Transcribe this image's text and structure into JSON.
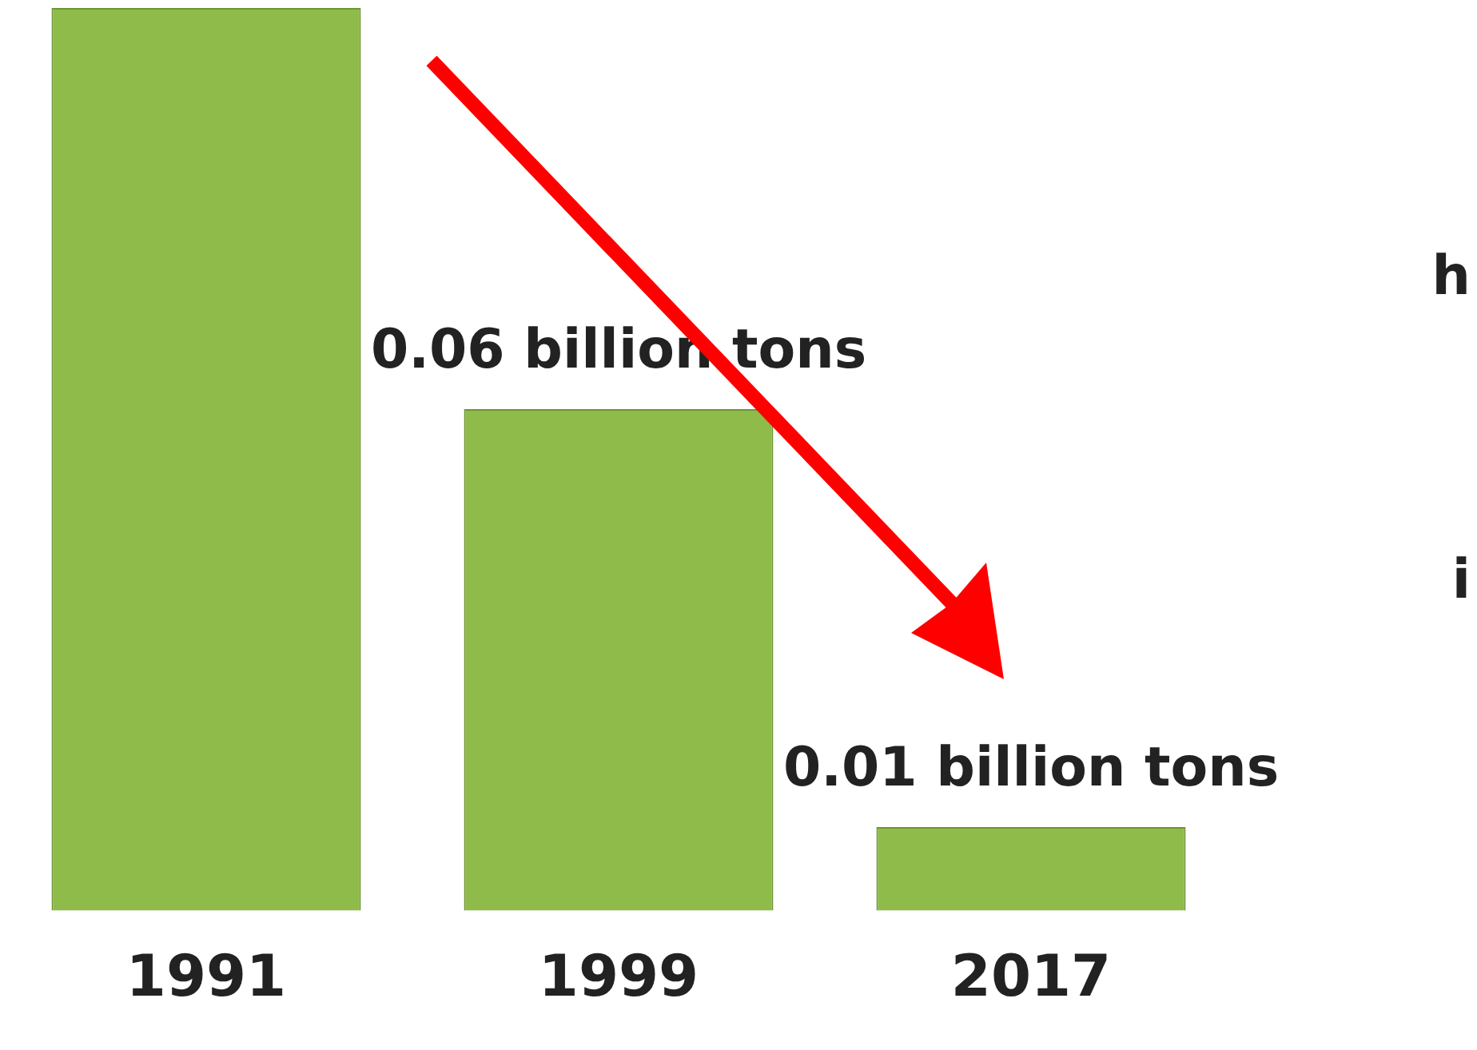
{
  "chart_data": {
    "type": "bar",
    "categories": [
      "1991",
      "1999",
      "2017"
    ],
    "values": [
      0.108,
      0.06,
      0.01
    ],
    "color": "#8fbb4a",
    "value_labels": [
      null,
      "0.06 billion tons",
      "0.01 billion tons"
    ],
    "annotations": [
      "h",
      "i"
    ],
    "grid": false,
    "legend": false
  }
}
